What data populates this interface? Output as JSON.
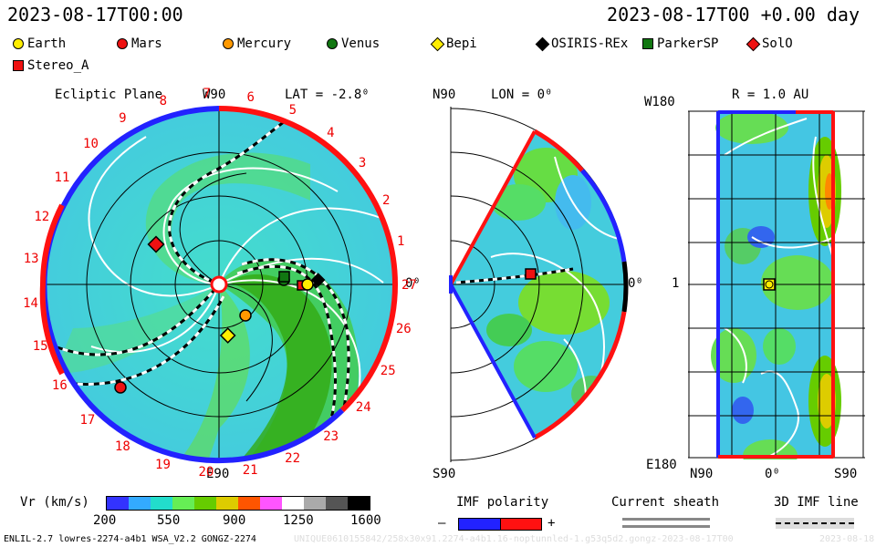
{
  "header": {
    "datetime_left": "2023-08-17T00:00",
    "datetime_right": "2023-08-17T00 +0.00 day"
  },
  "legend": [
    {
      "label": "Earth",
      "shape": "circle",
      "color": "#ffee00"
    },
    {
      "label": "Mars",
      "shape": "circle",
      "color": "#ee1111"
    },
    {
      "label": "Mercury",
      "shape": "circle",
      "color": "#ff9900"
    },
    {
      "label": "Venus",
      "shape": "circle",
      "color": "#117711"
    },
    {
      "label": "Bepi",
      "shape": "diamond",
      "color": "#ffee00"
    },
    {
      "label": "OSIRIS-REx",
      "shape": "diamond",
      "color": "#000000"
    },
    {
      "label": "ParkerSP",
      "shape": "square",
      "color": "#117711"
    },
    {
      "label": "SolO",
      "shape": "diamond",
      "color": "#ee1111"
    },
    {
      "label": "Stereo_A",
      "shape": "square",
      "color": "#ee1111"
    }
  ],
  "panel_ecliptic": {
    "title": "Ecliptic Plane",
    "top_label": "W90",
    "bottom_label": "E90",
    "lat_label": "LAT = -2.8⁰",
    "right_label": "0⁰",
    "carrington_numbers": [
      "1",
      "2",
      "3",
      "4",
      "5",
      "6",
      "7",
      "8",
      "9",
      "10",
      "11",
      "12",
      "13",
      "14",
      "15",
      "16",
      "17",
      "18",
      "19",
      "20",
      "21",
      "22",
      "23",
      "24",
      "25",
      "26",
      "27"
    ]
  },
  "panel_meridional": {
    "lon_label": "LON = 0⁰",
    "top_label": "N90",
    "bottom_label": "S90",
    "right_label": "0⁰"
  },
  "panel_map": {
    "r_label": "R = 1.0 AU",
    "top_label": "W180",
    "bottom_label": "E180",
    "mid_label": "1",
    "x_labels": [
      "N90",
      "0⁰",
      "S90"
    ]
  },
  "colorbar": {
    "title": "Vr (km/s)",
    "ticks": [
      "200",
      "550",
      "900",
      "1250",
      "1600"
    ],
    "colors": [
      "#3333ff",
      "#33aaff",
      "#22ddcc",
      "#66ee55",
      "#66cc00",
      "#ddcc00",
      "#ff5500",
      "#ff55ff",
      "#ffffff",
      "#aaaaaa",
      "#555555",
      "#000000"
    ]
  },
  "imf_polarity": {
    "title": "IMF polarity",
    "minus": "–",
    "plus": "+"
  },
  "current_sheath": {
    "title": "Current sheath"
  },
  "imf_line": {
    "title": "3D IMF line"
  },
  "footer": {
    "model_text": "ENLIL-2.7 lowres-2274-a4b1 WSA_V2.2 GONGZ-2274",
    "run_id": "UNIQUE0610155842/258x30x91.2274-a4b1.16-noptunnled-1.g53q5d2.gongz-2023-08-17T00",
    "date_stamp": "2023-08-18"
  }
}
